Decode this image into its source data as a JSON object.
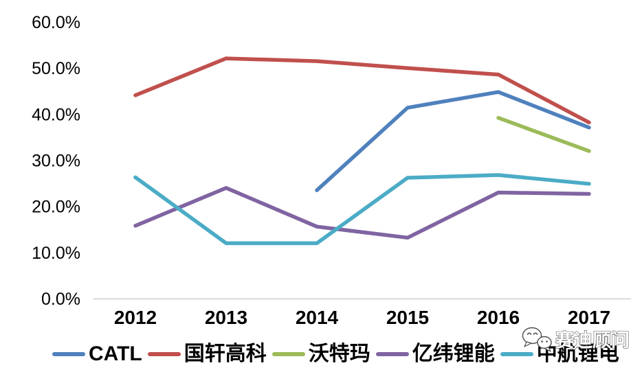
{
  "watermark": {
    "text": "赛迪顾问",
    "icon": "chat-bubbles-icon"
  },
  "chart_data": {
    "type": "line",
    "title": "",
    "xlabel": "",
    "ylabel": "",
    "grid": false,
    "legend_position": "bottom",
    "x": [
      2012,
      2013,
      2014,
      2015,
      2016,
      2017
    ],
    "xtick_labels": [
      "2012",
      "2013",
      "2014",
      "2015",
      "2016",
      "2017"
    ],
    "ylim": [
      0,
      60
    ],
    "ytick_step": 10,
    "ytick_labels": [
      "0.0%",
      "10.0%",
      "20.0%",
      "30.0%",
      "40.0%",
      "50.0%",
      "60.0%"
    ],
    "axis_line_color": "#d8d8d8",
    "series": [
      {
        "name": "CATL",
        "color": "#4F81BD",
        "values": [
          null,
          null,
          23.5,
          41.4,
          44.8,
          37.1
        ]
      },
      {
        "name": "国轩高科",
        "color": "#C0504D",
        "values": [
          44.1,
          52.1,
          51.5,
          50.0,
          48.6,
          38.2
        ]
      },
      {
        "name": "沃特玛",
        "color": "#9BBB59",
        "values": [
          null,
          null,
          null,
          null,
          39.2,
          32.0
        ]
      },
      {
        "name": "亿纬锂能",
        "color": "#8064A2",
        "values": [
          15.8,
          24.0,
          15.6,
          13.2,
          23.0,
          22.7
        ]
      },
      {
        "name": "中航锂电",
        "color": "#4BACC6",
        "values": [
          26.3,
          12.0,
          12.0,
          26.2,
          26.8,
          24.9
        ]
      }
    ]
  }
}
